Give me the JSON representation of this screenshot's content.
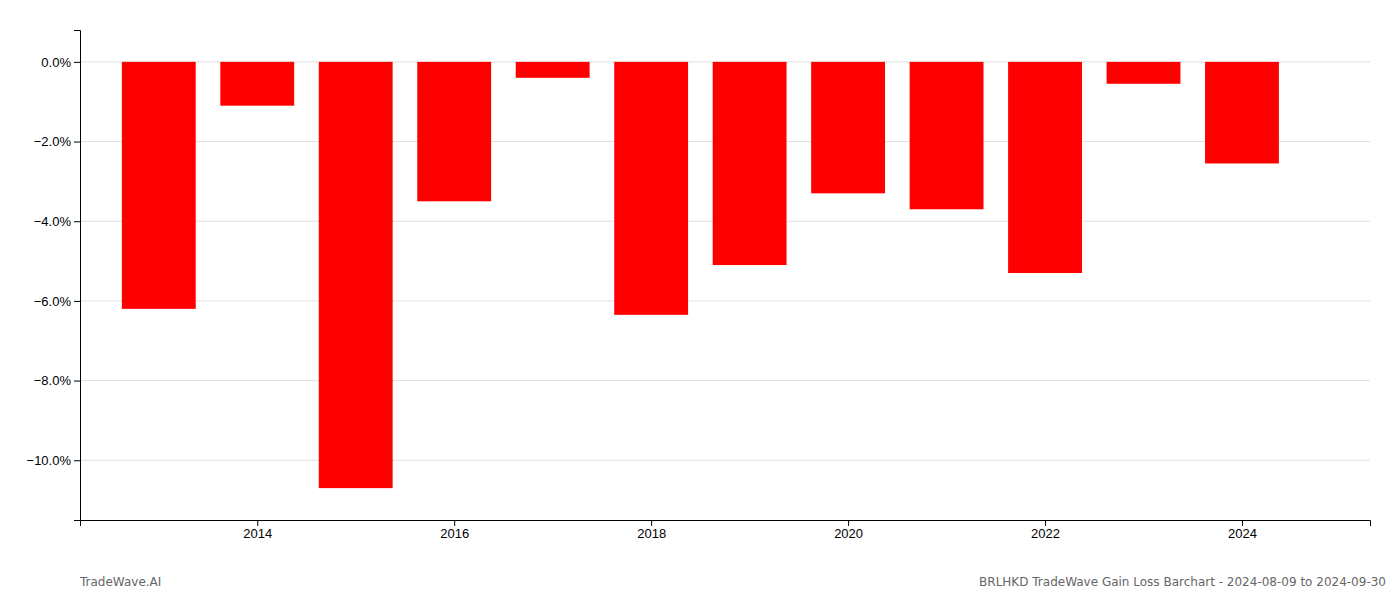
{
  "chart_data": {
    "type": "bar",
    "x": [
      2013,
      2014,
      2015,
      2016,
      2017,
      2018,
      2019,
      2020,
      2021,
      2022,
      2023,
      2024
    ],
    "values": [
      -6.2,
      -1.1,
      -10.7,
      -3.5,
      -0.4,
      -6.35,
      -5.1,
      -3.3,
      -3.7,
      -5.3,
      -0.55,
      -2.55
    ],
    "color": "#ff0000",
    "xlim": [
      2012.2,
      2025.3
    ],
    "xticks": [
      2014,
      2016,
      2018,
      2020,
      2022,
      2024
    ],
    "ylim": [
      -11.5,
      0.8
    ],
    "yticks": [
      {
        "value": 0,
        "label": "0.0%"
      },
      {
        "value": -2.0,
        "label": "−2.0%"
      },
      {
        "value": -4.0,
        "label": "−4.0%"
      },
      {
        "value": -6.0,
        "label": "−6.0%"
      },
      {
        "value": -8.0,
        "label": "−8.0%"
      },
      {
        "value": -10.0,
        "label": "−10.0%"
      }
    ],
    "grid": true,
    "annotations": [
      "TradeWave.AI",
      "BRLHKD TradeWave Gain Loss Barchart - 2024-08-09 to 2024-09-30"
    ]
  }
}
